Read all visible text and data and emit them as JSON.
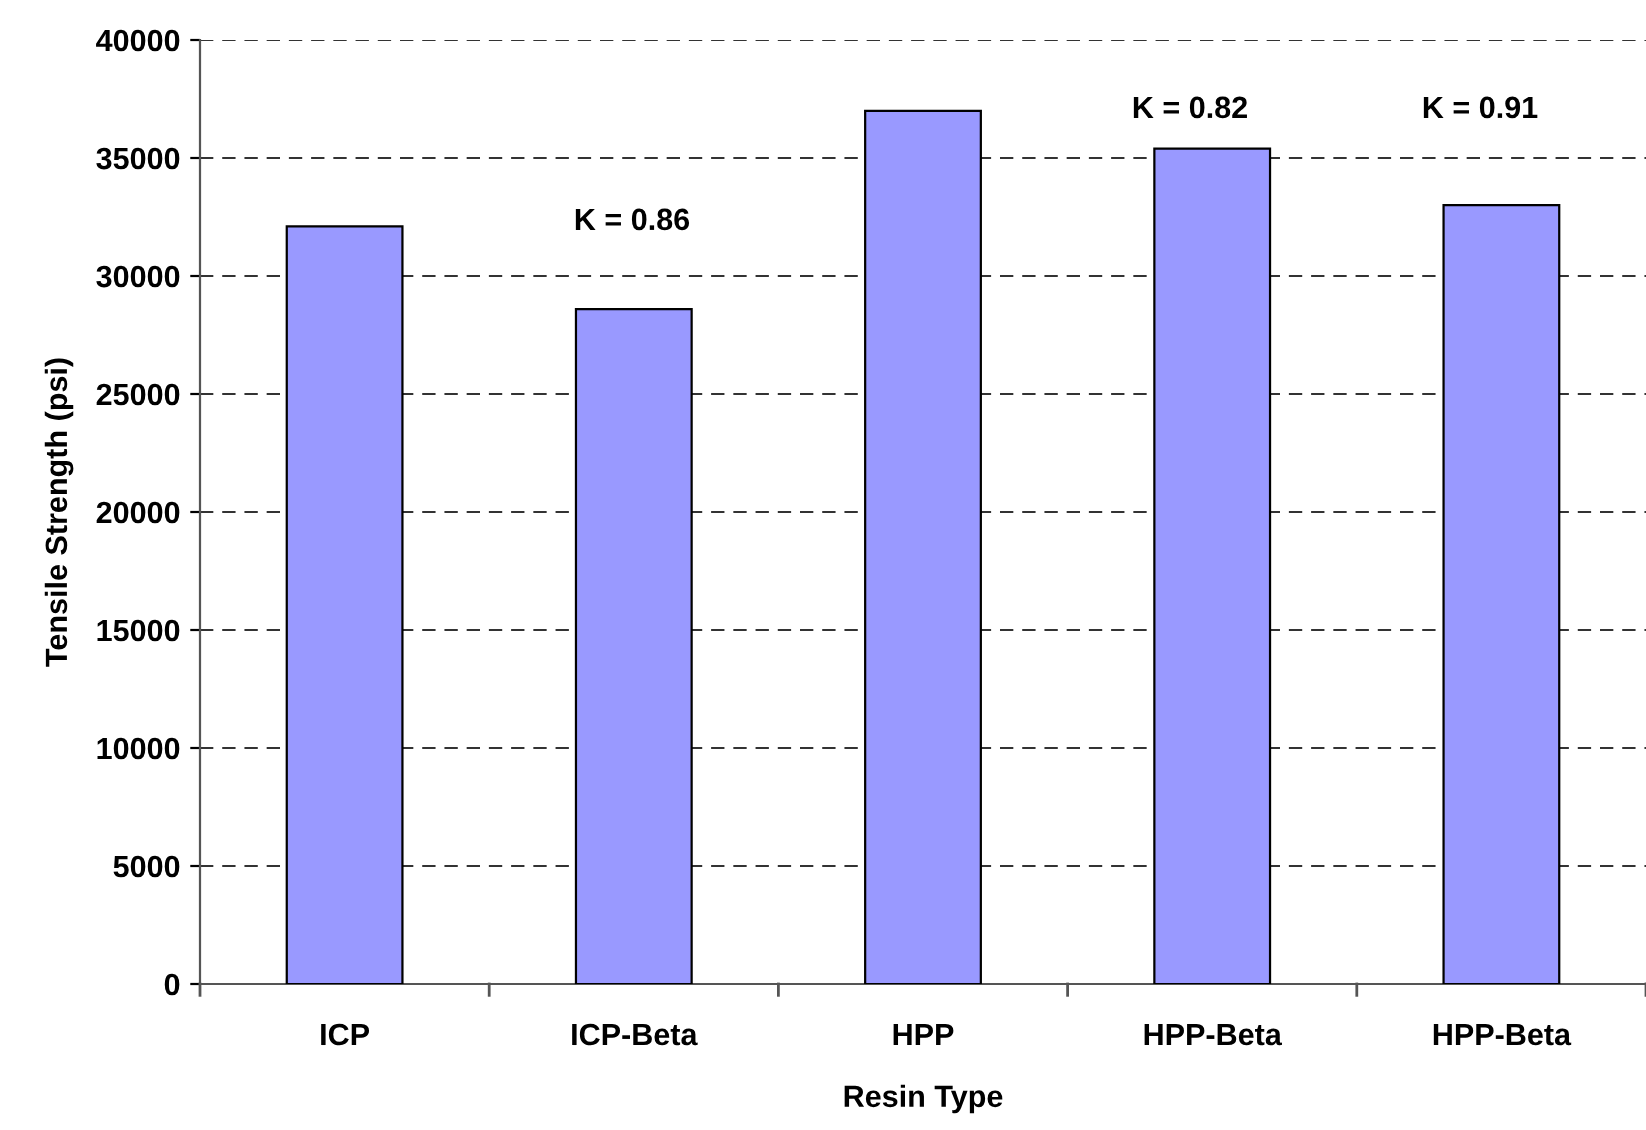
{
  "chart_data": {
    "type": "bar",
    "xlabel": "Resin Type",
    "ylabel": "Tensile Strength (psi)",
    "categories": [
      "ICP",
      "ICP-Beta",
      "HPP",
      "HPP-Beta",
      "HPP-Beta"
    ],
    "values": [
      32100,
      28600,
      37000,
      35400,
      33000
    ],
    "color": "#9999ff",
    "ylim": [
      0,
      40000
    ],
    "yticks": [
      0,
      5000,
      10000,
      15000,
      20000,
      25000,
      30000,
      35000,
      40000
    ],
    "grid": "y",
    "annotations": [
      "K = 0.86",
      "K = 0.82",
      "K = 0.91"
    ]
  }
}
